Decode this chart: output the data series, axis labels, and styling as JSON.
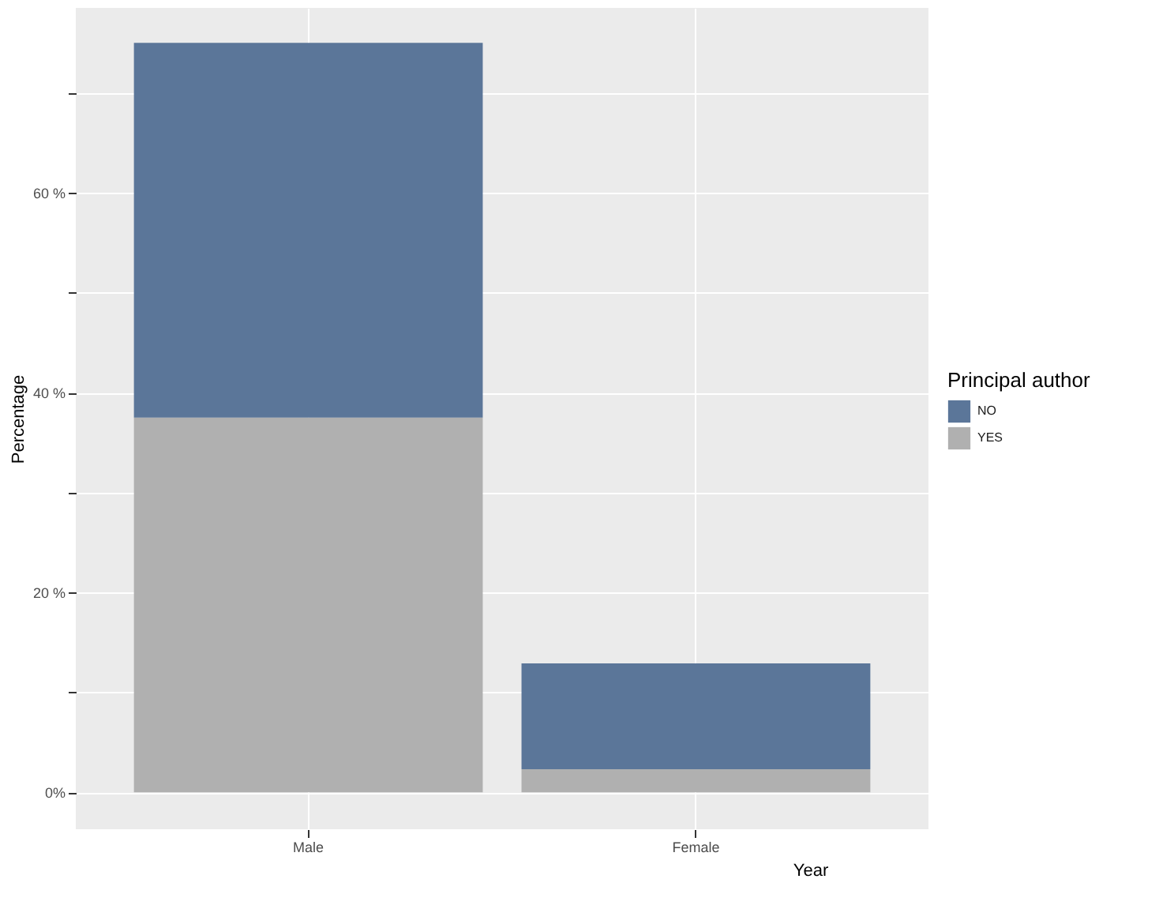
{
  "chart_data": {
    "type": "bar",
    "xlabel": "Year",
    "ylabel": "Percentage",
    "legend_title": "Principal author",
    "categories": [
      "Male",
      "Female"
    ],
    "stacked": true,
    "series": [
      {
        "name": "YES",
        "color": "#b0b0b0",
        "values": [
          37.5,
          2.3
        ]
      },
      {
        "name": "NO",
        "color": "#5b7699",
        "values": [
          37.5,
          10.6
        ]
      }
    ],
    "ylim": [
      -3.7,
      78.5
    ],
    "yticks": [
      {
        "value": 0,
        "label": "0%"
      },
      {
        "value": 10,
        "label": null
      },
      {
        "value": 20,
        "label": "20 %"
      },
      {
        "value": 30,
        "label": null
      },
      {
        "value": 40,
        "label": "40 %"
      },
      {
        "value": 50,
        "label": null
      },
      {
        "value": 60,
        "label": "60 %"
      },
      {
        "value": 70,
        "label": null
      }
    ],
    "grid": true,
    "legend": "right"
  }
}
